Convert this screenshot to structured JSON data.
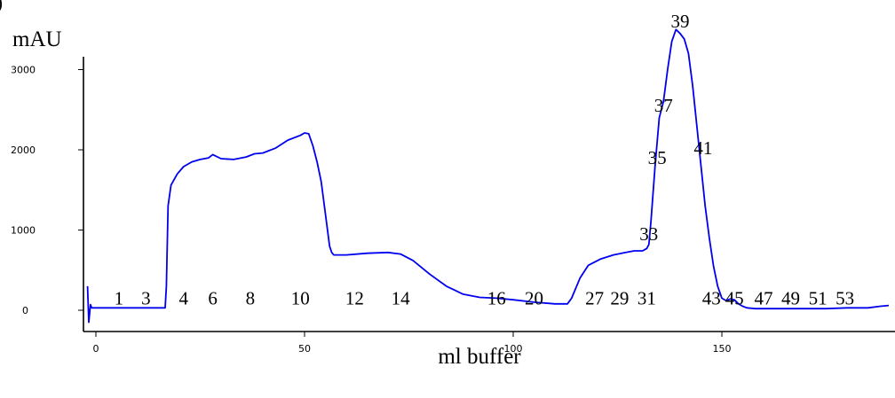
{
  "chart_data": {
    "type": "line",
    "title": "",
    "ylabel": "mAU",
    "xlabel": "ml buffer",
    "x_ticks": [
      "0",
      "50",
      "100",
      "150"
    ],
    "y_ticks": [
      "0",
      "1000",
      "2000",
      "3000"
    ],
    "xlim": [
      -2,
      190
    ],
    "ylim": [
      -200,
      3250
    ],
    "grid": false,
    "colors": {
      "trace": "#0000ee",
      "axis": "#000000"
    },
    "series": [
      {
        "name": "",
        "x": [
          -2,
          -1.7,
          -1.3,
          -1,
          0,
          5,
          10,
          15,
          16.6,
          16.9,
          17.3,
          18,
          19.5,
          21,
          23,
          25,
          27,
          28,
          30,
          33,
          36,
          38,
          40,
          43,
          46,
          49,
          50,
          51,
          52,
          53,
          54,
          55,
          56,
          56.5,
          57,
          60,
          65,
          70,
          73,
          76,
          80,
          84,
          88,
          92,
          96,
          100,
          105,
          110,
          113,
          114,
          116,
          118,
          121,
          124,
          127,
          129,
          130,
          131,
          132,
          132.5,
          133,
          134,
          135,
          136,
          137,
          138,
          139,
          140,
          141,
          142,
          143,
          144,
          145,
          146,
          147,
          148,
          149,
          150,
          151,
          152,
          153,
          154,
          155,
          156,
          158,
          160,
          165,
          170,
          175,
          180,
          185,
          188,
          190
        ],
        "y": [
          300,
          -150,
          70,
          30,
          30,
          30,
          30,
          30,
          30,
          300,
          1300,
          1560,
          1700,
          1790,
          1850,
          1880,
          1900,
          1940,
          1890,
          1880,
          1910,
          1950,
          1960,
          2020,
          2120,
          2180,
          2210,
          2200,
          2050,
          1850,
          1600,
          1200,
          800,
          720,
          690,
          690,
          710,
          720,
          700,
          620,
          450,
          300,
          200,
          160,
          150,
          130,
          100,
          80,
          80,
          150,
          400,
          560,
          640,
          690,
          720,
          740,
          740,
          740,
          770,
          820,
          1100,
          1800,
          2400,
          2600,
          3000,
          3350,
          3500,
          3450,
          3380,
          3200,
          2800,
          2300,
          1800,
          1300,
          900,
          550,
          300,
          150,
          120,
          140,
          130,
          80,
          50,
          30,
          20,
          20,
          20,
          20,
          20,
          30,
          30,
          50,
          60
        ]
      }
    ],
    "annotations": [
      {
        "label": "1",
        "x": 5.5,
        "y": 150
      },
      {
        "label": "3",
        "x": 12,
        "y": 150
      },
      {
        "label": "4",
        "x": 21,
        "y": 150
      },
      {
        "label": "6",
        "x": 28,
        "y": 150
      },
      {
        "label": "8",
        "x": 37,
        "y": 150
      },
      {
        "label": "10",
        "x": 49,
        "y": 150
      },
      {
        "label": "12",
        "x": 62,
        "y": 150
      },
      {
        "label": "14",
        "x": 73,
        "y": 150
      },
      {
        "label": "16",
        "x": 96,
        "y": 150
      },
      {
        "label": "20",
        "x": 105,
        "y": 150
      },
      {
        "label": "27",
        "x": 119.5,
        "y": 150
      },
      {
        "label": "29",
        "x": 125.5,
        "y": 150
      },
      {
        "label": "31",
        "x": 132,
        "y": 150
      },
      {
        "label": "33",
        "x": 132.5,
        "y": 950
      },
      {
        "label": "35",
        "x": 134.5,
        "y": 1900
      },
      {
        "label": "37",
        "x": 136,
        "y": 2550
      },
      {
        "label": "39",
        "x": 140,
        "y": 3600
      },
      {
        "label": "41",
        "x": 145.5,
        "y": 2020
      },
      {
        "label": "43",
        "x": 147.5,
        "y": 150
      },
      {
        "label": "45",
        "x": 153,
        "y": 150
      },
      {
        "label": "47",
        "x": 160,
        "y": 150
      },
      {
        "label": "49",
        "x": 166.5,
        "y": 150
      },
      {
        "label": "51",
        "x": 173,
        "y": 150
      },
      {
        "label": "53",
        "x": 179.5,
        "y": 150
      }
    ],
    "corner_label": ")"
  }
}
